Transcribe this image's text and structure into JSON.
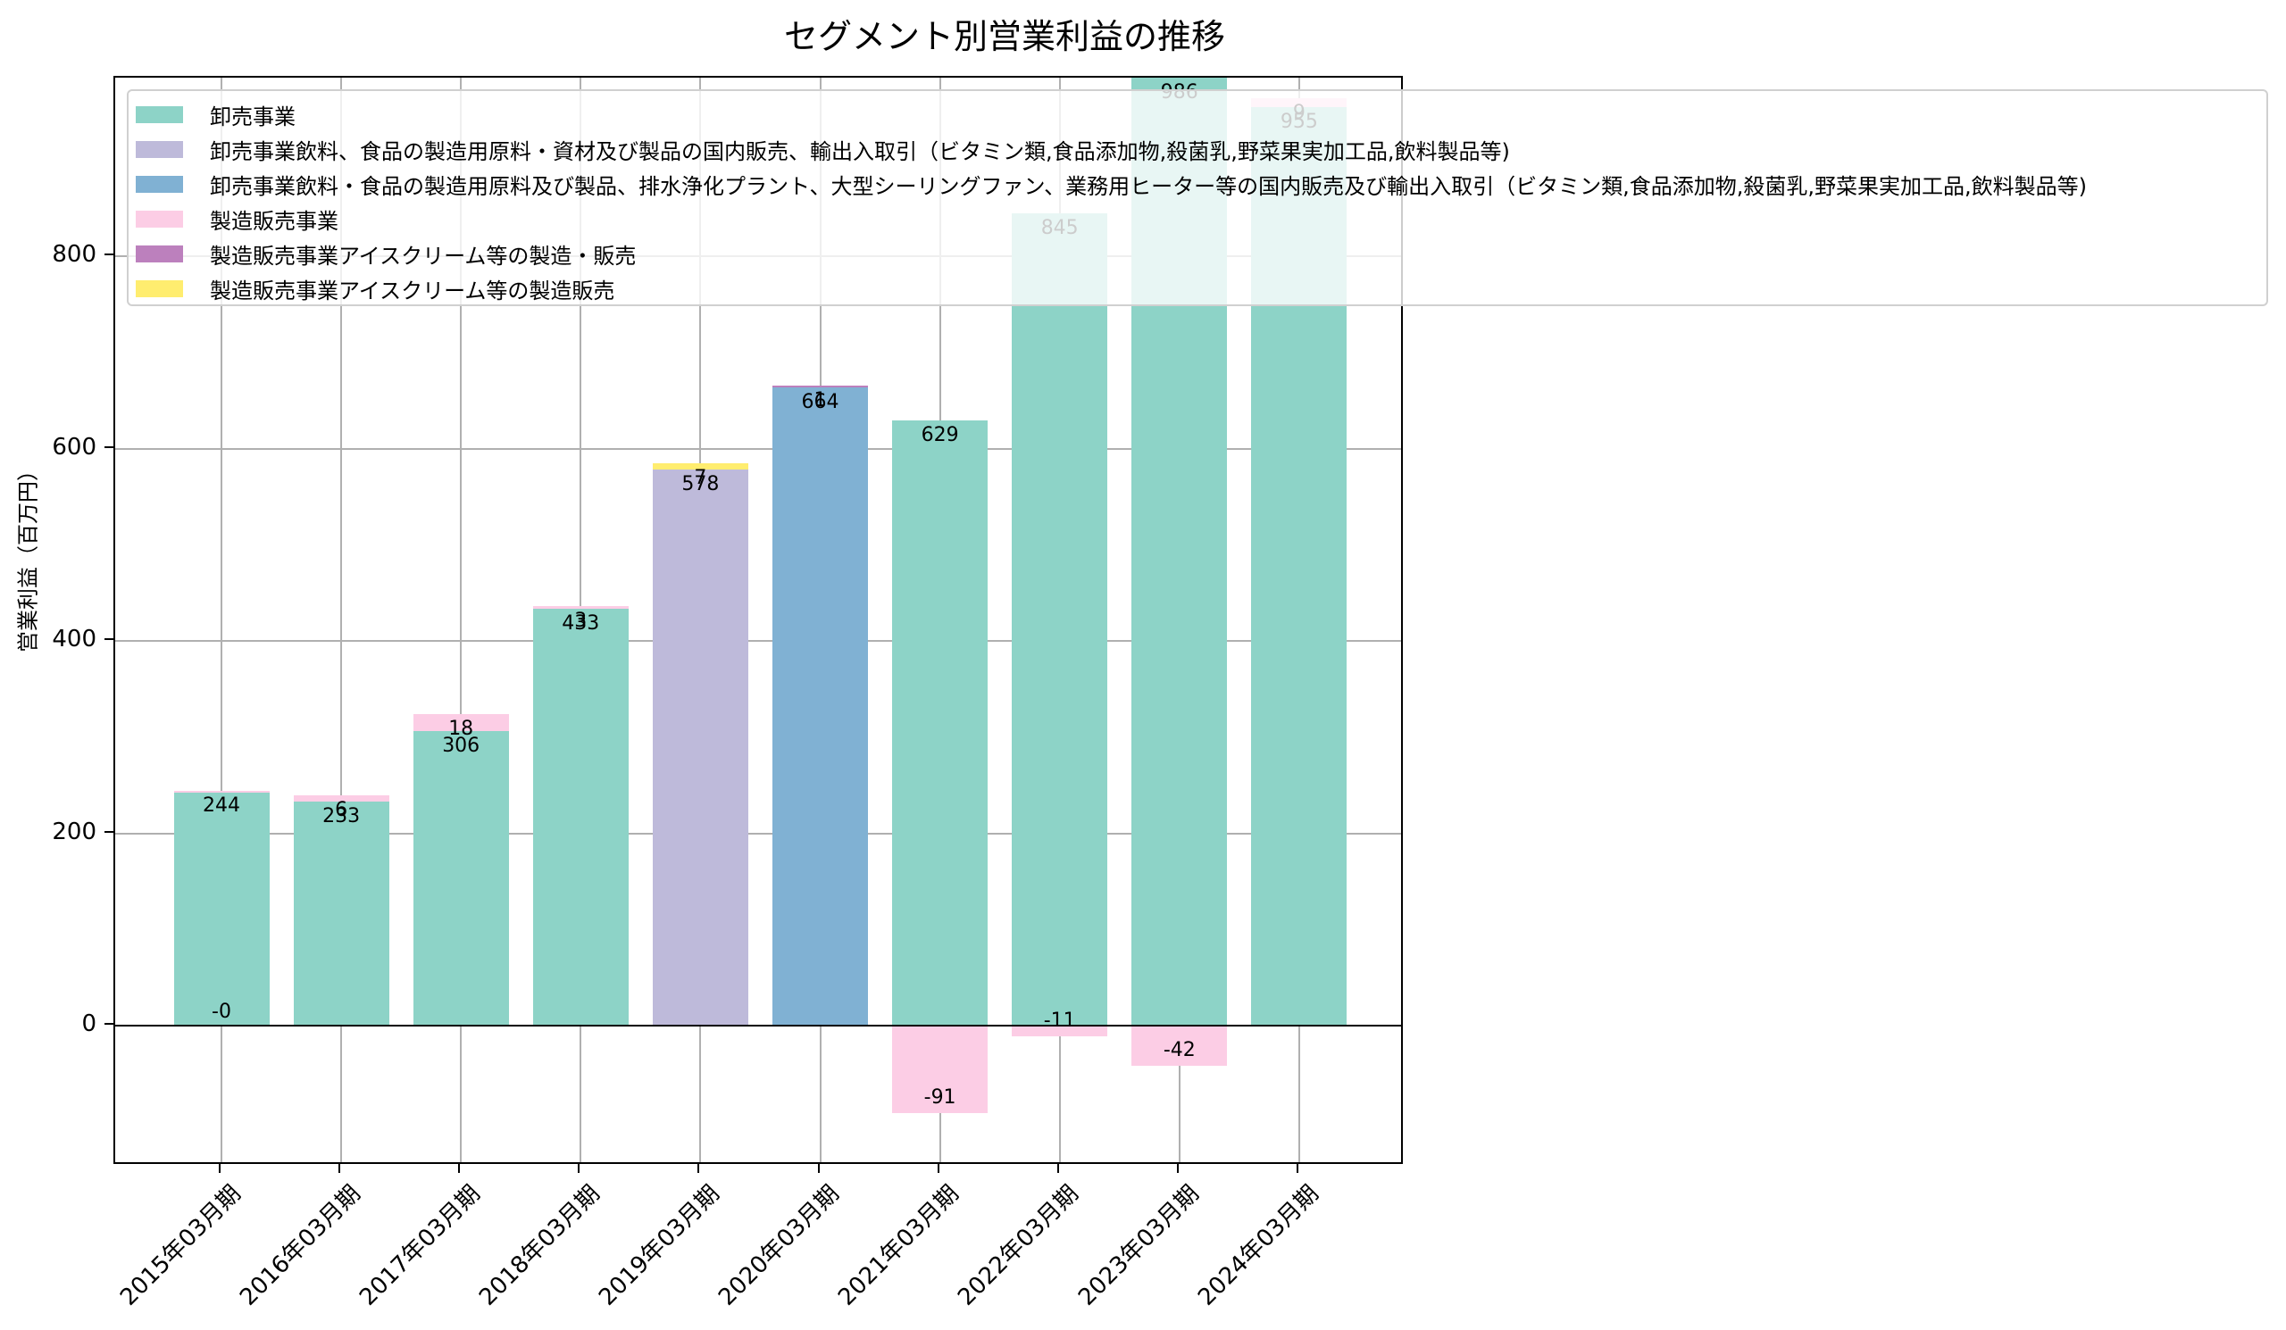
{
  "chart_data": {
    "type": "bar",
    "stacked": true,
    "title": "セグメント別営業利益の推移",
    "xlabel": "",
    "ylabel": "営業利益（百万円）",
    "ylim": [
      -146,
      986
    ],
    "yticks": [
      0,
      200,
      400,
      600,
      800
    ],
    "grid": true,
    "legend_position": "upper left",
    "categories": [
      "2015年03月期",
      "2016年03月期",
      "2017年03月期",
      "2018年03月期",
      "2019年03月期",
      "2020年03月期",
      "2021年03月期",
      "2022年03月期",
      "2023年03月期",
      "2024年03月期"
    ],
    "series": [
      {
        "name": "卸売事業",
        "color": "#8dd3c7",
        "values": [
          244,
          233,
          306,
          433,
          null,
          null,
          629,
          845,
          986,
          955
        ]
      },
      {
        "name": "卸売事業飲料、食品の製造用原料・資材及び製品の国内販売、輸出入取引（ビタミン類,食品添加物,殺菌乳,野菜果実加工品,飲料製品等)",
        "color": "#bebada",
        "values": [
          null,
          null,
          null,
          null,
          578,
          null,
          null,
          null,
          null,
          null
        ]
      },
      {
        "name": "卸売事業飲料・食品の製造用原料及び製品、排水浄化プラント、大型シーリングファン、業務用ヒーター等の国内販売及び輸出入取引（ビタミン類,食品添加物,殺菌乳,野菜果実加工品,飲料製品等)",
        "color": "#80b1d3",
        "values": [
          null,
          null,
          null,
          null,
          null,
          664,
          null,
          null,
          null,
          null
        ]
      },
      {
        "name": "製造販売事業",
        "color": "#fccde5",
        "values": [
          0,
          6,
          18,
          3,
          null,
          null,
          -91,
          -11,
          -42,
          9
        ]
      },
      {
        "name": "製造販売事業アイスクリーム等の製造・販売",
        "color": "#bc80bd",
        "values": [
          null,
          null,
          null,
          null,
          null,
          1,
          null,
          null,
          null,
          null
        ]
      },
      {
        "name": "製造販売事業アイスクリーム等の製造販売",
        "color": "#ffed6f",
        "values": [
          null,
          null,
          null,
          null,
          7,
          null,
          null,
          null,
          null,
          null
        ]
      }
    ]
  },
  "labels": {
    "title": "セグメント別営業利益の推移",
    "ylabel": "営業利益（百万円）",
    "yticks": [
      "0",
      "200",
      "400",
      "600",
      "800"
    ],
    "xticks": [
      "2015年03月期",
      "2016年03月期",
      "2017年03月期",
      "2018年03月期",
      "2019年03月期",
      "2020年03月期",
      "2021年03月期",
      "2022年03月期",
      "2023年03月期",
      "2024年03月期"
    ],
    "legend": [
      "卸売事業",
      "卸売事業飲料、食品の製造用原料・資材及び製品の国内販売、輸出入取引（ビタミン類,食品添加物,殺菌乳,野菜果実加工品,飲料製品等)",
      "卸売事業飲料・食品の製造用原料及び製品、排水浄化プラント、大型シーリングファン、業務用ヒーター等の国内販売及び輸出入取引（ビタミン類,食品添加物,殺菌乳,野菜果実加工品,飲料製品等)",
      "製造販売事業",
      "製造販売事業アイスクリーム等の製造・販売",
      "製造販売事業アイスクリーム等の製造販売"
    ],
    "value_labels": [
      "244",
      "-0",
      "233",
      "6",
      "306",
      "18",
      "433",
      "3",
      "578",
      "7",
      "664",
      "1",
      "629",
      "-91",
      "845",
      "-11",
      "986",
      "-42",
      "955",
      "9"
    ]
  }
}
